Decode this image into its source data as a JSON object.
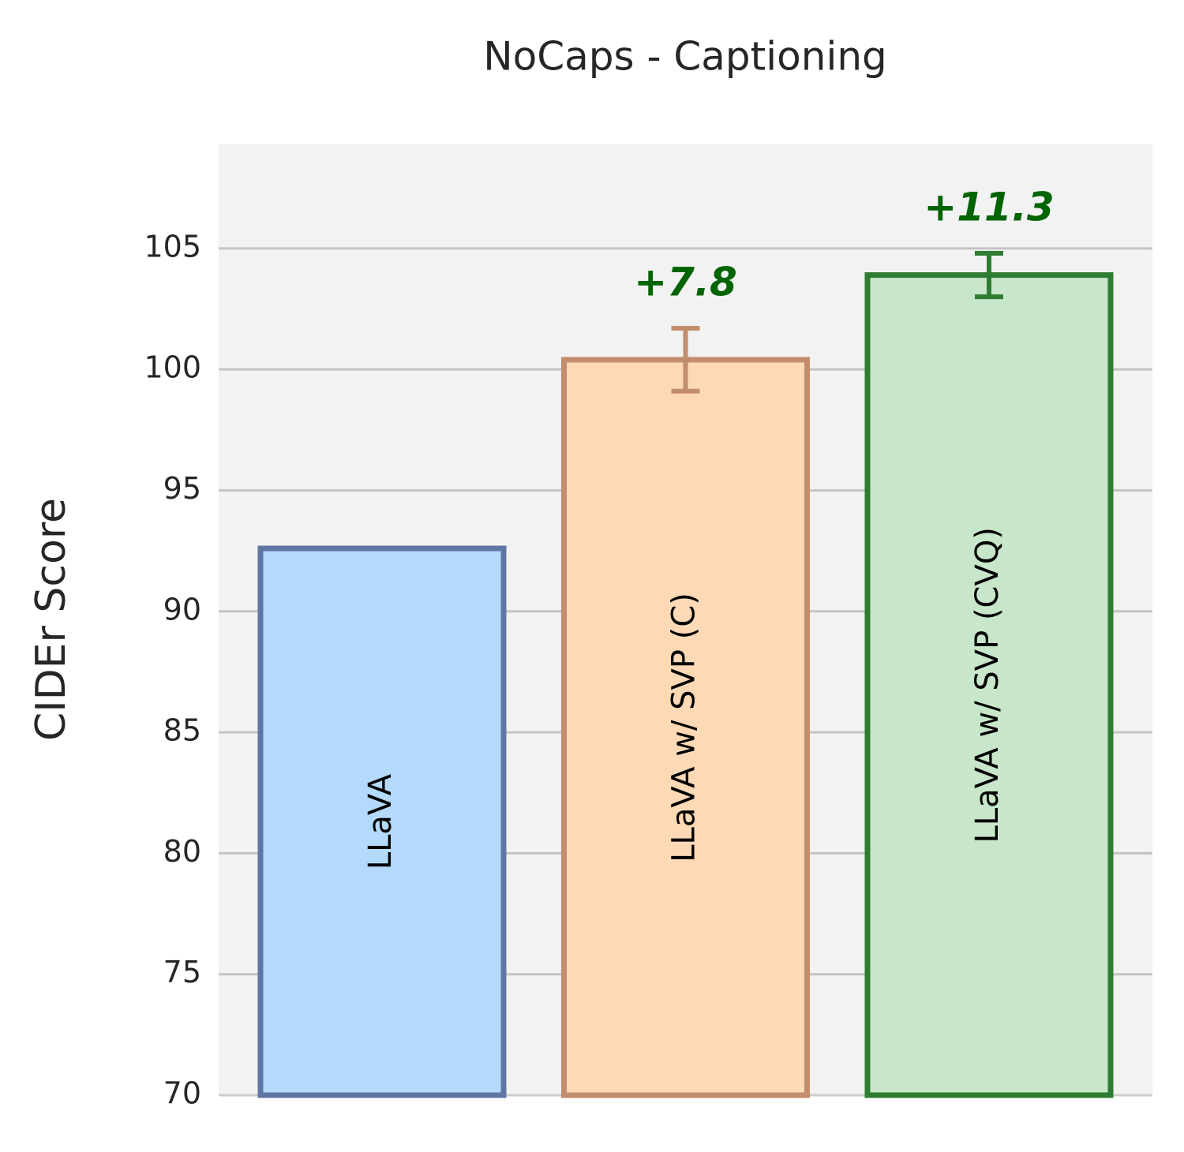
{
  "chart_data": {
    "type": "bar",
    "title": "NoCaps - Captioning",
    "y_label": "CIDEr Score",
    "categories": [
      "LLaVA",
      "LLaVA w/ SVP (C)",
      "LLaVA w/ SVP (CVQ)"
    ],
    "values": [
      92.6,
      100.4,
      103.9
    ],
    "errors": [
      null,
      1.3,
      0.9
    ],
    "colors": [
      "#b3d9fb",
      "#fdd9b5",
      "#c8e6c9"
    ],
    "edge_colors": [
      "#5f76a3",
      "#c28d6c",
      "#2e7d32"
    ],
    "annotations": [
      null,
      "+7.8",
      "+11.3"
    ],
    "annotation_color": "#006400",
    "ylim": [
      70,
      109.3
    ],
    "yticks": [
      70,
      75,
      80,
      85,
      90,
      95,
      100,
      105
    ],
    "grid": true
  }
}
